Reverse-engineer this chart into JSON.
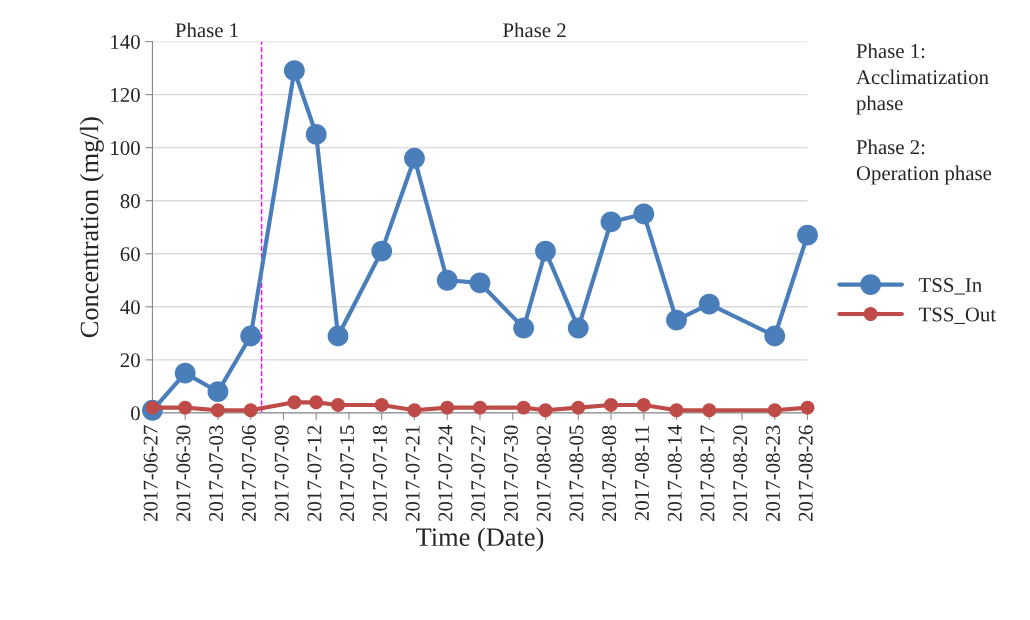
{
  "chart_data": {
    "type": "line",
    "xlabel": "Time (Date)",
    "ylabel": "Concentration (mg/l)",
    "x": [
      "2017-06-27",
      "2017-06-30",
      "2017-07-03",
      "2017-07-06",
      "2017-07-10",
      "2017-07-12",
      "2017-07-14",
      "2017-07-18",
      "2017-07-21",
      "2017-07-24",
      "2017-07-27",
      "2017-07-31",
      "2017-08-02",
      "2017-08-05",
      "2017-08-08",
      "2017-08-11",
      "2017-08-14",
      "2017-08-17",
      "2017-08-23",
      "2017-08-26"
    ],
    "series": [
      {
        "name": "TSS_In",
        "color": "#4a7ebb",
        "values": [
          1,
          15,
          8,
          29,
          129,
          105,
          29,
          61,
          96,
          50,
          49,
          32,
          61,
          32,
          72,
          75,
          35,
          41,
          29,
          67
        ]
      },
      {
        "name": "TSS_Out",
        "color": "#be4b48",
        "values": [
          2,
          2,
          1,
          1,
          4,
          4,
          3,
          3,
          1,
          2,
          2,
          2,
          1,
          2,
          3,
          3,
          1,
          1,
          1,
          2
        ]
      }
    ],
    "xlim": [
      "2017-06-27",
      "2017-08-26"
    ],
    "xticks": [
      "2017-06-27",
      "2017-06-30",
      "2017-07-03",
      "2017-07-06",
      "2017-07-09",
      "2017-07-12",
      "2017-07-15",
      "2017-07-18",
      "2017-07-21",
      "2017-07-24",
      "2017-07-27",
      "2017-07-30",
      "2017-08-02",
      "2017-08-05",
      "2017-08-08",
      "2017-08-11",
      "2017-08-14",
      "2017-08-17",
      "2017-08-20",
      "2017-08-23",
      "2017-08-26"
    ],
    "ylim": [
      0,
      140
    ],
    "yticks": [
      0,
      20,
      40,
      60,
      80,
      100,
      120,
      140
    ],
    "ref_lines": [
      {
        "axis": "x",
        "value": "2017-07-07",
        "label": null,
        "color": "#ff00ff",
        "line_style": "dashed"
      }
    ],
    "annotations": [
      "Phase 1",
      "Phase 2",
      "Phase 1:\nAcclimatization\nphase",
      "Phase 2:\nOperation phase"
    ],
    "grid": "y",
    "legend": "right",
    "marker": "circle",
    "line_style": "solid"
  }
}
